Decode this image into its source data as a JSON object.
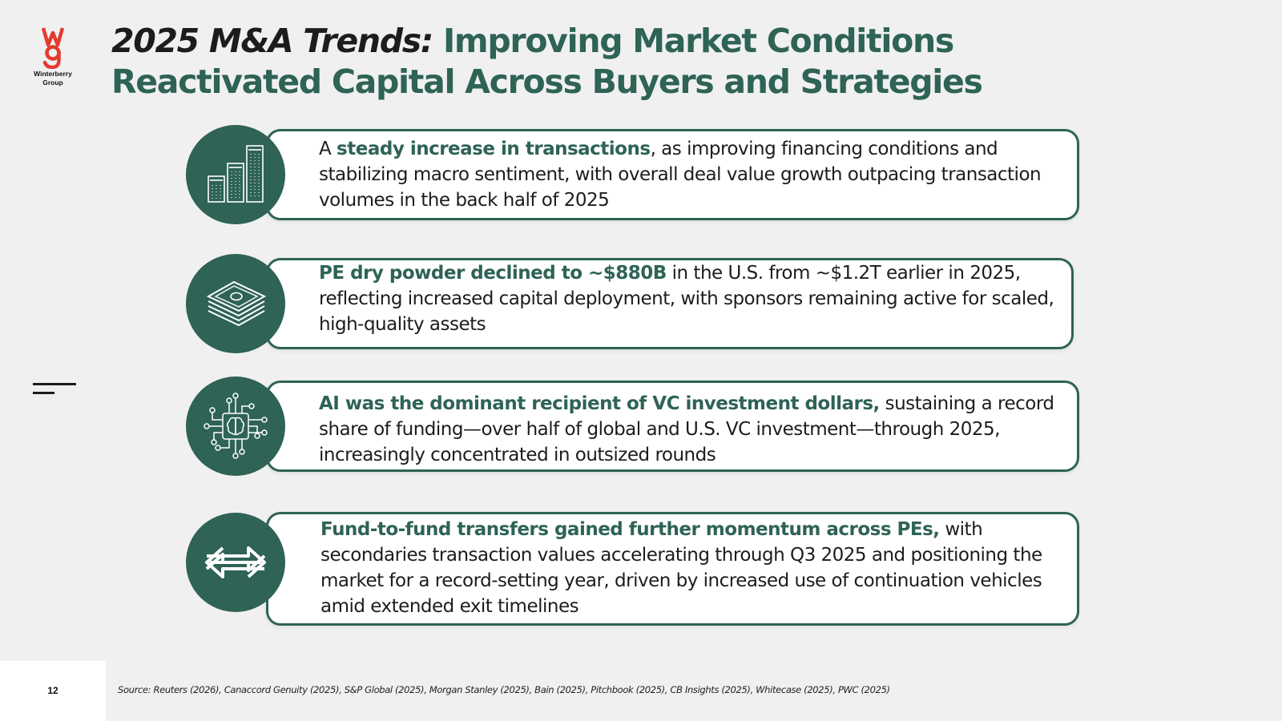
{
  "logo": {
    "name_line1": "Winterberry",
    "name_line2": "Group",
    "brand_color": "#e53a2f"
  },
  "title": {
    "lead": "2025 M&A Trends:",
    "main": "Improving Market Conditions Reactivated Capital Across Buyers and Strategies"
  },
  "cards": [
    {
      "icon": "buildings-icon",
      "pre": "A ",
      "highlight": "steady increase in transactions",
      "rest": ", as improving financing conditions and stabilizing macro sentiment, with overall deal value growth outpacing transaction volumes in the back half of 2025"
    },
    {
      "icon": "cash-stack-icon",
      "pre": "",
      "highlight": "PE dry powder declined to ~$880B",
      "rest": " in the U.S. from ~$1.2T earlier in 2025, reflecting increased capital deployment, with sponsors remaining active for scaled, high-quality assets"
    },
    {
      "icon": "ai-brain-circuit-icon",
      "pre": "",
      "highlight": "AI was the dominant recipient of VC investment dollars,",
      "rest": " sustaining a record share of funding—over half of global and U.S. VC investment—through 2025, increasingly concentrated in outsized rounds"
    },
    {
      "icon": "transfer-arrows-icon",
      "pre": "",
      "highlight": "Fund-to-fund transfers gained further momentum across PEs,",
      "rest": " with secondaries transaction values accelerating through Q3 2025 and positioning the market for a record-setting year, driven by increased use of continuation vehicles amid extended exit timelines"
    }
  ],
  "footer": {
    "page_number": "12",
    "source": "Source: Reuters (2026), Canaccord Genuity (2025), S&P Global (2025), Morgan Stanley (2025), Bain (2025), Pitchbook (2025), CB Insights (2025), Whitecase (2025), PWC (2025)"
  },
  "colors": {
    "accent": "#2e6356",
    "text": "#1c1c1c",
    "background": "#f0f0f0"
  }
}
